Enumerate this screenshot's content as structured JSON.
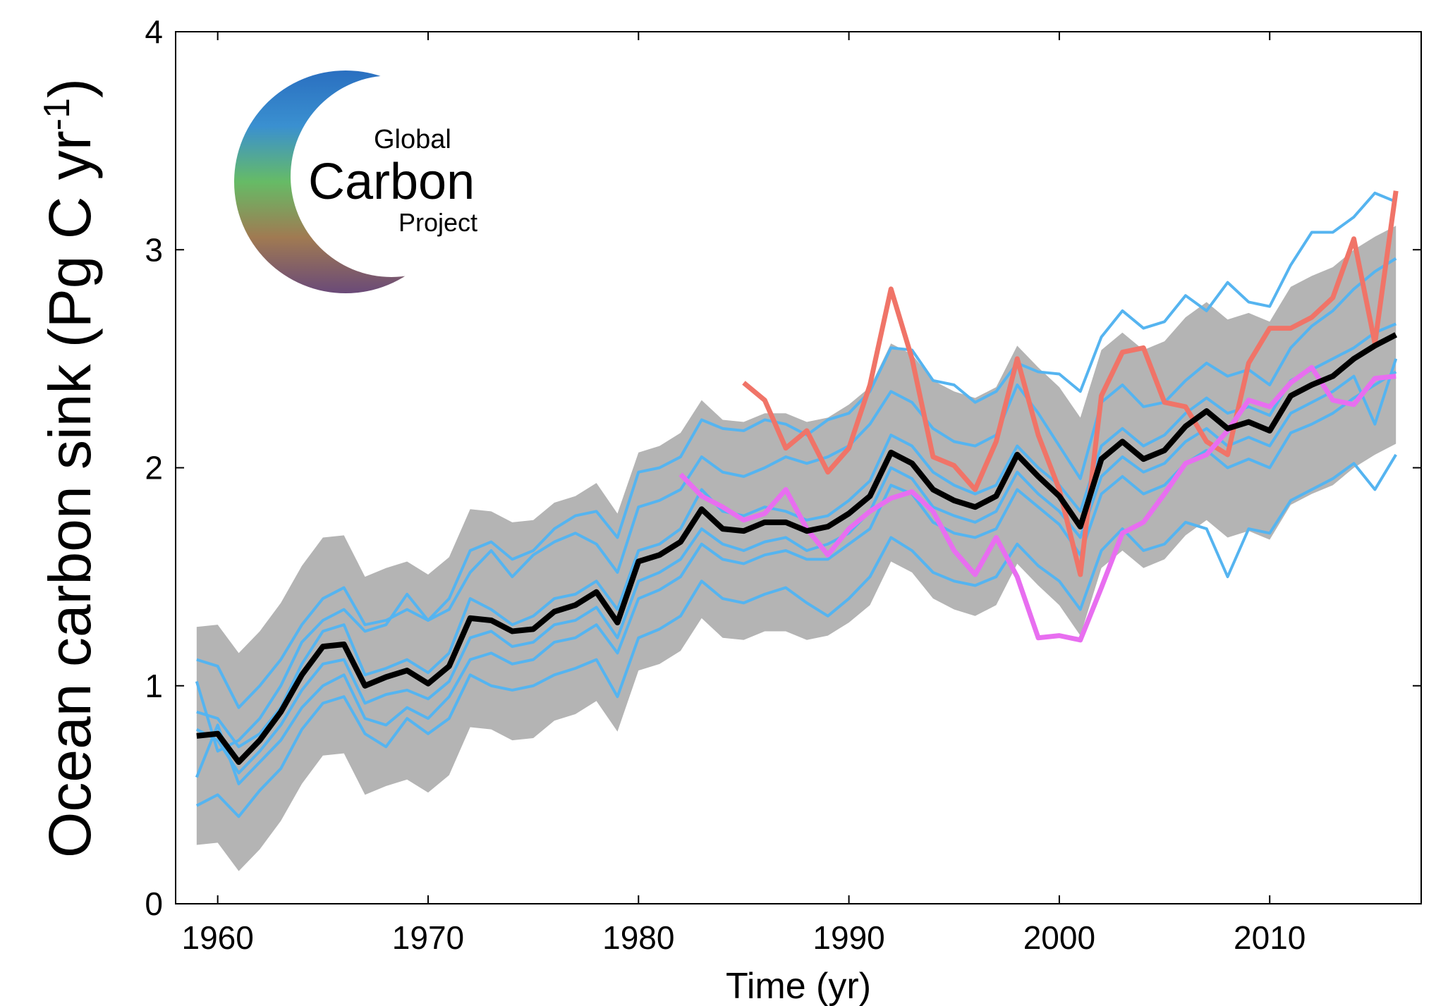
{
  "chart_data": {
    "type": "line",
    "xlabel": "Time (yr)",
    "ylabel": {
      "text": "Ocean carbon sink (Pg C yr",
      "sup": "-1",
      "end": ")"
    },
    "logo": {
      "lines": [
        "Global",
        "Carbon",
        "Project"
      ]
    },
    "xlim": [
      1958,
      2017.2
    ],
    "ylim": [
      0,
      4
    ],
    "xticks": [
      1960,
      1970,
      1980,
      1990,
      2000,
      2010
    ],
    "yticks": [
      0,
      1,
      2,
      3,
      4
    ],
    "x": [
      1959,
      1960,
      1961,
      1962,
      1963,
      1964,
      1965,
      1966,
      1967,
      1968,
      1969,
      1970,
      1971,
      1972,
      1973,
      1974,
      1975,
      1976,
      1977,
      1978,
      1979,
      1980,
      1981,
      1982,
      1983,
      1984,
      1985,
      1986,
      1987,
      1988,
      1989,
      1990,
      1991,
      1992,
      1993,
      1994,
      1995,
      1996,
      1997,
      1998,
      1999,
      2000,
      2001,
      2002,
      2003,
      2004,
      2005,
      2006,
      2007,
      2008,
      2009,
      2010,
      2011,
      2012,
      2013,
      2014,
      2015,
      2016
    ],
    "band": {
      "color": "#b4b4b4",
      "lower": [
        0.27,
        0.28,
        0.15,
        0.25,
        0.38,
        0.55,
        0.68,
        0.69,
        0.5,
        0.54,
        0.57,
        0.51,
        0.59,
        0.81,
        0.8,
        0.75,
        0.76,
        0.84,
        0.87,
        0.93,
        0.79,
        1.07,
        1.1,
        1.16,
        1.31,
        1.22,
        1.21,
        1.25,
        1.25,
        1.21,
        1.23,
        1.29,
        1.37,
        1.57,
        1.52,
        1.4,
        1.35,
        1.32,
        1.37,
        1.56,
        1.46,
        1.37,
        1.23,
        1.54,
        1.62,
        1.54,
        1.58,
        1.69,
        1.76,
        1.68,
        1.71,
        1.67,
        1.83,
        1.88,
        1.92,
        2.0,
        2.06,
        2.11
      ],
      "upper": [
        1.27,
        1.28,
        1.15,
        1.25,
        1.38,
        1.55,
        1.68,
        1.69,
        1.5,
        1.54,
        1.57,
        1.51,
        1.59,
        1.81,
        1.8,
        1.75,
        1.76,
        1.84,
        1.87,
        1.93,
        1.79,
        2.07,
        2.1,
        2.16,
        2.31,
        2.22,
        2.21,
        2.25,
        2.25,
        2.21,
        2.23,
        2.29,
        2.37,
        2.57,
        2.52,
        2.4,
        2.35,
        2.32,
        2.37,
        2.56,
        2.46,
        2.37,
        2.23,
        2.54,
        2.62,
        2.54,
        2.58,
        2.69,
        2.76,
        2.68,
        2.71,
        2.67,
        2.83,
        2.88,
        2.92,
        3.0,
        3.06,
        3.11
      ]
    },
    "series": [
      {
        "color": "#55b4f0",
        "width": 4,
        "values": [
          1.12,
          1.09,
          0.9,
          1.0,
          1.12,
          1.28,
          1.4,
          1.45,
          1.28,
          1.3,
          1.35,
          1.3,
          1.4,
          1.62,
          1.66,
          1.58,
          1.62,
          1.72,
          1.78,
          1.8,
          1.68,
          1.98,
          2.0,
          2.05,
          2.22,
          2.18,
          2.17,
          2.22,
          2.2,
          2.15,
          2.22,
          2.25,
          2.35,
          2.55,
          2.54,
          2.4,
          2.38,
          2.3,
          2.35,
          2.48,
          2.44,
          2.43,
          2.35,
          2.6,
          2.72,
          2.64,
          2.67,
          2.79,
          2.72,
          2.85,
          2.76,
          2.74,
          2.93,
          3.08,
          3.08,
          3.15,
          3.26,
          3.22
        ]
      },
      {
        "color": "#55b4f0",
        "width": 4,
        "values": [
          1.02,
          0.7,
          0.75,
          0.85,
          1.0,
          1.2,
          1.3,
          1.35,
          1.25,
          1.28,
          1.42,
          1.3,
          1.35,
          1.52,
          1.62,
          1.5,
          1.6,
          1.66,
          1.7,
          1.65,
          1.52,
          1.82,
          1.85,
          1.9,
          2.05,
          1.98,
          1.96,
          2.0,
          2.05,
          2.02,
          2.05,
          2.1,
          2.2,
          2.35,
          2.3,
          2.18,
          2.12,
          2.1,
          2.15,
          2.38,
          2.25,
          2.1,
          1.95,
          2.3,
          2.38,
          2.28,
          2.3,
          2.4,
          2.48,
          2.42,
          2.45,
          2.38,
          2.55,
          2.65,
          2.72,
          2.82,
          2.9,
          2.96
        ]
      },
      {
        "color": "#55b4f0",
        "width": 4,
        "values": [
          0.88,
          0.85,
          0.72,
          0.78,
          0.9,
          1.1,
          1.25,
          1.28,
          1.05,
          1.08,
          1.12,
          1.06,
          1.15,
          1.4,
          1.35,
          1.28,
          1.32,
          1.4,
          1.42,
          1.48,
          1.35,
          1.62,
          1.65,
          1.72,
          1.9,
          1.8,
          1.78,
          1.82,
          1.8,
          1.76,
          1.78,
          1.85,
          1.94,
          2.15,
          2.1,
          1.98,
          1.92,
          1.88,
          1.92,
          2.1,
          2.0,
          1.92,
          1.8,
          2.1,
          2.18,
          2.1,
          2.15,
          2.25,
          2.32,
          2.25,
          2.28,
          2.24,
          2.4,
          2.45,
          2.5,
          2.55,
          2.62,
          2.66
        ]
      },
      {
        "color": "#55b4f0",
        "width": 4,
        "values": [
          0.8,
          0.75,
          0.6,
          0.7,
          0.82,
          0.98,
          1.1,
          1.12,
          0.92,
          0.96,
          0.98,
          0.94,
          1.02,
          1.22,
          1.25,
          1.18,
          1.2,
          1.28,
          1.3,
          1.36,
          1.22,
          1.48,
          1.52,
          1.58,
          1.72,
          1.65,
          1.62,
          1.66,
          1.68,
          1.62,
          1.65,
          1.7,
          1.8,
          2.0,
          1.95,
          1.82,
          1.78,
          1.75,
          1.8,
          1.98,
          1.88,
          1.8,
          1.68,
          1.96,
          2.05,
          1.98,
          2.02,
          2.12,
          2.18,
          2.1,
          2.14,
          2.1,
          2.25,
          2.3,
          2.35,
          2.42,
          2.2,
          2.5
        ]
      },
      {
        "color": "#55b4f0",
        "width": 4,
        "values": [
          0.58,
          0.82,
          0.55,
          0.65,
          0.75,
          0.9,
          1.0,
          1.05,
          0.85,
          0.82,
          0.9,
          0.85,
          0.95,
          1.12,
          1.15,
          1.1,
          1.12,
          1.2,
          1.22,
          1.28,
          1.15,
          1.4,
          1.44,
          1.5,
          1.65,
          1.58,
          1.56,
          1.6,
          1.62,
          1.58,
          1.58,
          1.65,
          1.72,
          1.92,
          1.88,
          1.75,
          1.7,
          1.68,
          1.72,
          1.9,
          1.82,
          1.74,
          1.6,
          1.88,
          1.96,
          1.88,
          1.92,
          2.02,
          2.08,
          2.0,
          2.04,
          2.0,
          2.16,
          2.2,
          2.25,
          2.32,
          2.38,
          2.44
        ]
      },
      {
        "color": "#55b4f0",
        "width": 4,
        "values": [
          0.45,
          0.5,
          0.4,
          0.52,
          0.62,
          0.8,
          0.92,
          0.95,
          0.78,
          0.72,
          0.85,
          0.78,
          0.85,
          1.05,
          1.0,
          0.98,
          1.0,
          1.05,
          1.08,
          1.12,
          0.95,
          1.22,
          1.26,
          1.32,
          1.48,
          1.4,
          1.38,
          1.42,
          1.45,
          1.38,
          1.32,
          1.4,
          1.5,
          1.68,
          1.62,
          1.52,
          1.48,
          1.46,
          1.5,
          1.65,
          1.55,
          1.48,
          1.35,
          1.62,
          1.72,
          1.62,
          1.65,
          1.75,
          1.72,
          1.5,
          1.72,
          1.7,
          1.85,
          1.9,
          1.95,
          2.02,
          1.9,
          2.06
        ]
      },
      {
        "color": "#f07468",
        "width": 7,
        "values": [
          null,
          null,
          null,
          null,
          null,
          null,
          null,
          null,
          null,
          null,
          null,
          null,
          null,
          null,
          null,
          null,
          null,
          null,
          null,
          null,
          null,
          null,
          null,
          null,
          null,
          null,
          2.39,
          2.31,
          2.09,
          2.17,
          1.98,
          2.09,
          2.38,
          2.82,
          2.5,
          2.05,
          2.01,
          1.9,
          2.12,
          2.5,
          2.15,
          1.9,
          1.51,
          2.33,
          2.53,
          2.55,
          2.3,
          2.28,
          2.12,
          2.06,
          2.48,
          2.64,
          2.64,
          2.69,
          2.78,
          3.05,
          2.57,
          3.27
        ]
      },
      {
        "color": "#e86ef0",
        "width": 7,
        "values": [
          null,
          null,
          null,
          null,
          null,
          null,
          null,
          null,
          null,
          null,
          null,
          null,
          null,
          null,
          null,
          null,
          null,
          null,
          null,
          null,
          null,
          null,
          null,
          1.97,
          1.87,
          1.82,
          1.76,
          1.79,
          1.9,
          1.72,
          1.6,
          1.72,
          1.8,
          1.86,
          1.89,
          1.8,
          1.62,
          1.51,
          1.68,
          1.5,
          1.22,
          1.23,
          1.21,
          1.45,
          1.7,
          1.75,
          1.88,
          2.02,
          2.06,
          2.17,
          2.31,
          2.28,
          2.39,
          2.46,
          2.31,
          2.29,
          2.41,
          2.42
        ]
      },
      {
        "color": "#000000",
        "width": 8,
        "values": [
          0.77,
          0.78,
          0.65,
          0.75,
          0.88,
          1.05,
          1.18,
          1.19,
          1.0,
          1.04,
          1.07,
          1.01,
          1.09,
          1.31,
          1.3,
          1.25,
          1.26,
          1.34,
          1.37,
          1.43,
          1.29,
          1.57,
          1.6,
          1.66,
          1.81,
          1.72,
          1.71,
          1.75,
          1.75,
          1.71,
          1.73,
          1.79,
          1.87,
          2.07,
          2.02,
          1.9,
          1.85,
          1.82,
          1.87,
          2.06,
          1.96,
          1.87,
          1.73,
          2.04,
          2.12,
          2.04,
          2.08,
          2.19,
          2.26,
          2.18,
          2.21,
          2.17,
          2.33,
          2.38,
          2.42,
          2.5,
          2.56,
          2.61
        ]
      }
    ]
  }
}
